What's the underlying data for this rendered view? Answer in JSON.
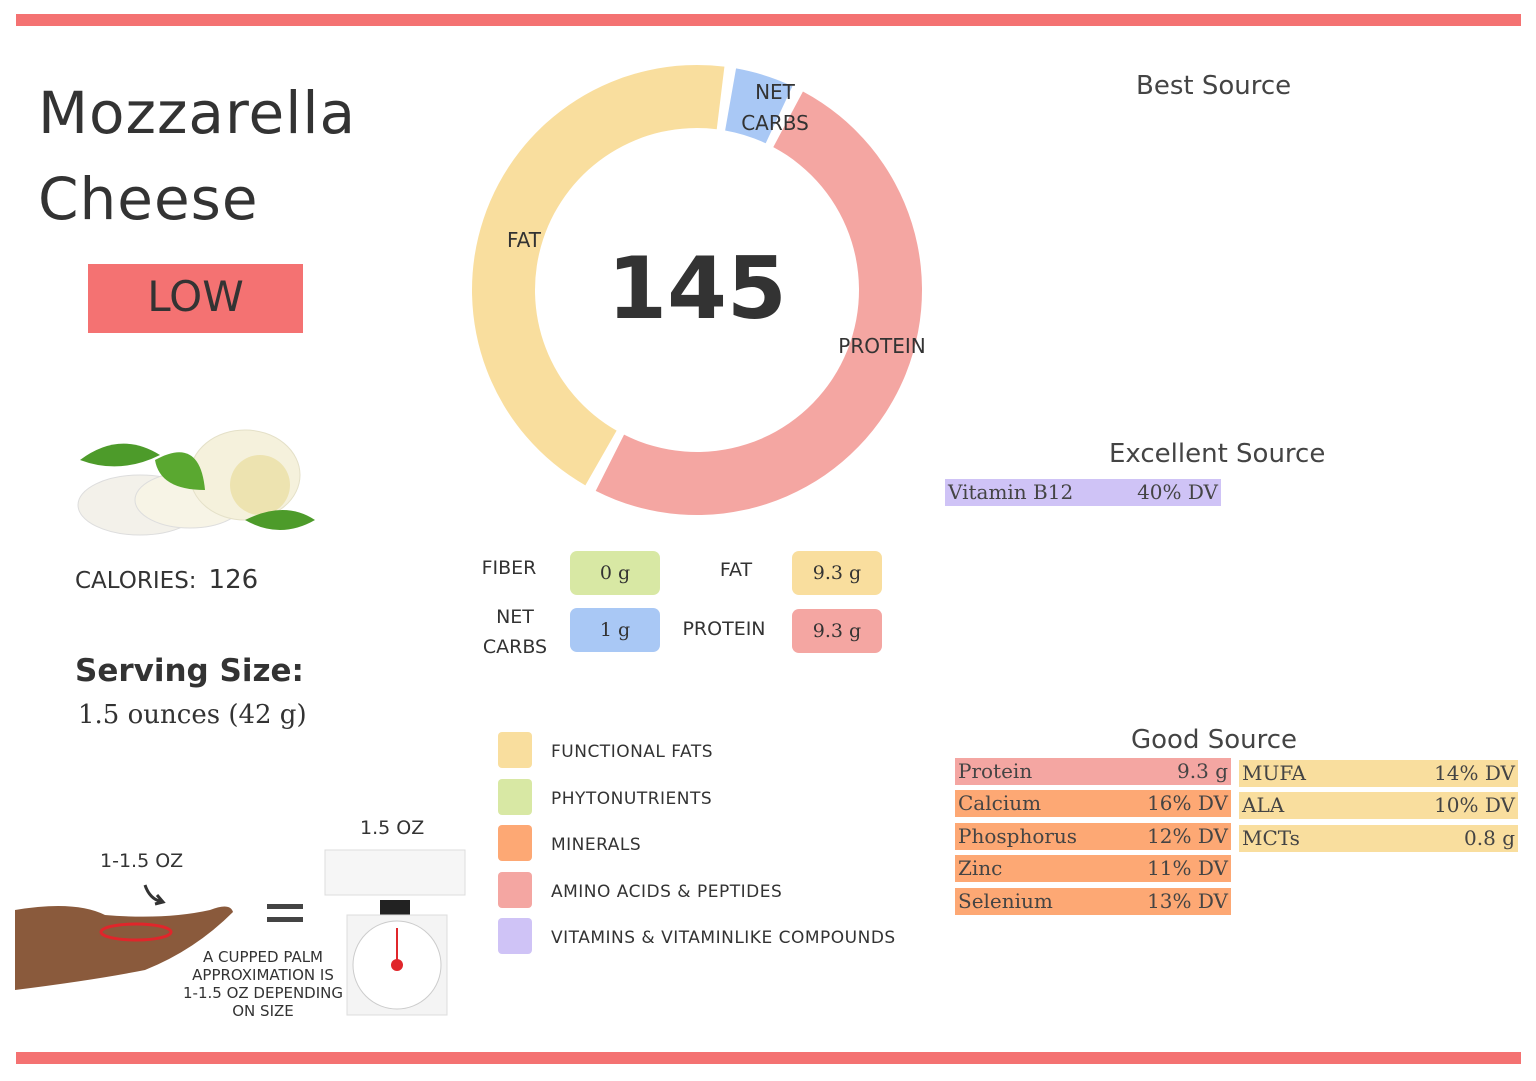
{
  "title_line1": "Mozzarella",
  "title_line2": "Cheese",
  "badge": "LOW",
  "calories_label": "CALORIES:",
  "calories_value": "126",
  "serving_label": "Serving Size:",
  "serving_value": "1.5 ounces (42 g)",
  "chart_data": {
    "type": "pie",
    "donut": true,
    "center_label": "145",
    "labels": [
      "NET CARBS",
      "PROTEIN",
      "FAT"
    ],
    "values": [
      4.3,
      50.9,
      44.8
    ],
    "colors": [
      "#a9c8f5",
      "#f4a6a2",
      "#f9de9e"
    ]
  },
  "macros": {
    "fiber_label": "FIBER",
    "fiber": "0 g",
    "fat_label": "FAT",
    "fat": "9.3 g",
    "carbs_label1": "NET",
    "carbs_label2": "CARBS",
    "carbs": "1 g",
    "protein_label": "PROTEIN",
    "protein": "9.3 g"
  },
  "legend": [
    {
      "label": "FUNCTIONAL  FATS",
      "color": "#f9de9e"
    },
    {
      "label": "PHYTONUTRIENTS",
      "color": "#d8e8a4"
    },
    {
      "label": "MINERALS",
      "color": "#fda874"
    },
    {
      "label": "AMINO ACIDS & PEPTIDES",
      "color": "#f4a6a2"
    },
    {
      "label": "VITAMINS & VITAMINLIKE COMPOUNDS",
      "color": "#cfc3f6"
    }
  ],
  "best_source": {
    "title": "Best Source"
  },
  "excellent_source": {
    "title": "Excellent Source",
    "items": [
      {
        "name": "Vitamin B12",
        "value": "40% DV",
        "color": "#cfc3f6"
      }
    ]
  },
  "good_source": {
    "title": "Good Source",
    "left": [
      {
        "name": "Protein",
        "value": "9.3 g",
        "color": "#f4a6a2"
      },
      {
        "name": "Calcium",
        "value": "16% DV",
        "color": "#fda874"
      },
      {
        "name": "Phosphorus",
        "value": "12% DV",
        "color": "#fda874"
      },
      {
        "name": "Zinc",
        "value": "11% DV",
        "color": "#fda874"
      },
      {
        "name": "Selenium",
        "value": "13% DV",
        "color": "#fda874"
      }
    ],
    "right": [
      {
        "name": "MUFA",
        "value": "14% DV",
        "color": "#f9de9e"
      },
      {
        "name": "ALA",
        "value": "10% DV",
        "color": "#f9de9e"
      },
      {
        "name": "MCTs",
        "value": "0.8 g",
        "color": "#f9de9e"
      }
    ]
  },
  "portion": {
    "palm_label": "1-1.5 OZ",
    "scale_label": "1.5 OZ",
    "equals": "=",
    "caption": [
      "A CUPPED PALM",
      "APPROXIMATION IS",
      "1-1.5 OZ DEPENDING",
      "ON SIZE"
    ]
  }
}
